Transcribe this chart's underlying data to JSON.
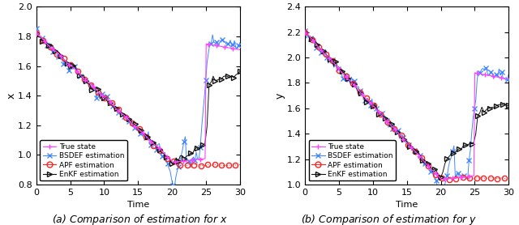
{
  "fig_width": 6.4,
  "fig_height": 2.78,
  "dpi": 100,
  "subplot_titles_a": "(a) Comparison of estimation for $x$",
  "subplot_titles_b": "(b) Comparison of estimation for $y$",
  "xlabel": "Time",
  "ylabel_left": "x",
  "ylabel_right": "y",
  "xlim": [
    0,
    30
  ],
  "ylim_left": [
    0.8,
    2.0
  ],
  "ylim_right": [
    1.0,
    2.4
  ],
  "yticks_left": [
    0.8,
    1.0,
    1.2,
    1.4,
    1.6,
    1.8,
    2.0
  ],
  "yticks_right": [
    1.0,
    1.2,
    1.4,
    1.6,
    1.8,
    2.0,
    2.2,
    2.4
  ],
  "xticks": [
    0,
    5,
    10,
    15,
    20,
    25,
    30
  ],
  "colors": {
    "true": "#ff44ff",
    "bsdef": "#4488ff",
    "apf": "#ff2222",
    "enkf": "#111111"
  },
  "legend_labels": [
    "True state",
    "BSDEF estimation",
    "APF estimation",
    "EnKF estimation"
  ],
  "legend_loc": "lower left"
}
